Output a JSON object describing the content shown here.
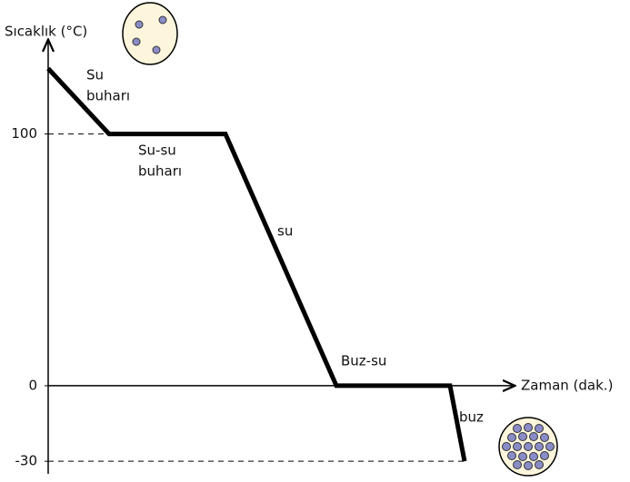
{
  "chart_data": {
    "type": "line",
    "y_label": "Sıcaklık (°C)",
    "x_label": "Zaman (dak.)",
    "x": [
      0,
      67,
      195,
      317,
      442,
      458
    ],
    "values": [
      126,
      100,
      100,
      0,
      0,
      -30
    ],
    "color": "#000000",
    "xlim": [
      0,
      520
    ],
    "ylim": [
      -35,
      137
    ],
    "yticks": [
      100,
      0,
      -30
    ],
    "annotations": [
      [
        "Su",
        "buharı"
      ],
      [
        "Su-su",
        "buharı"
      ],
      [
        "su"
      ],
      [
        "Buz-su"
      ],
      [
        "buz"
      ]
    ]
  }
}
